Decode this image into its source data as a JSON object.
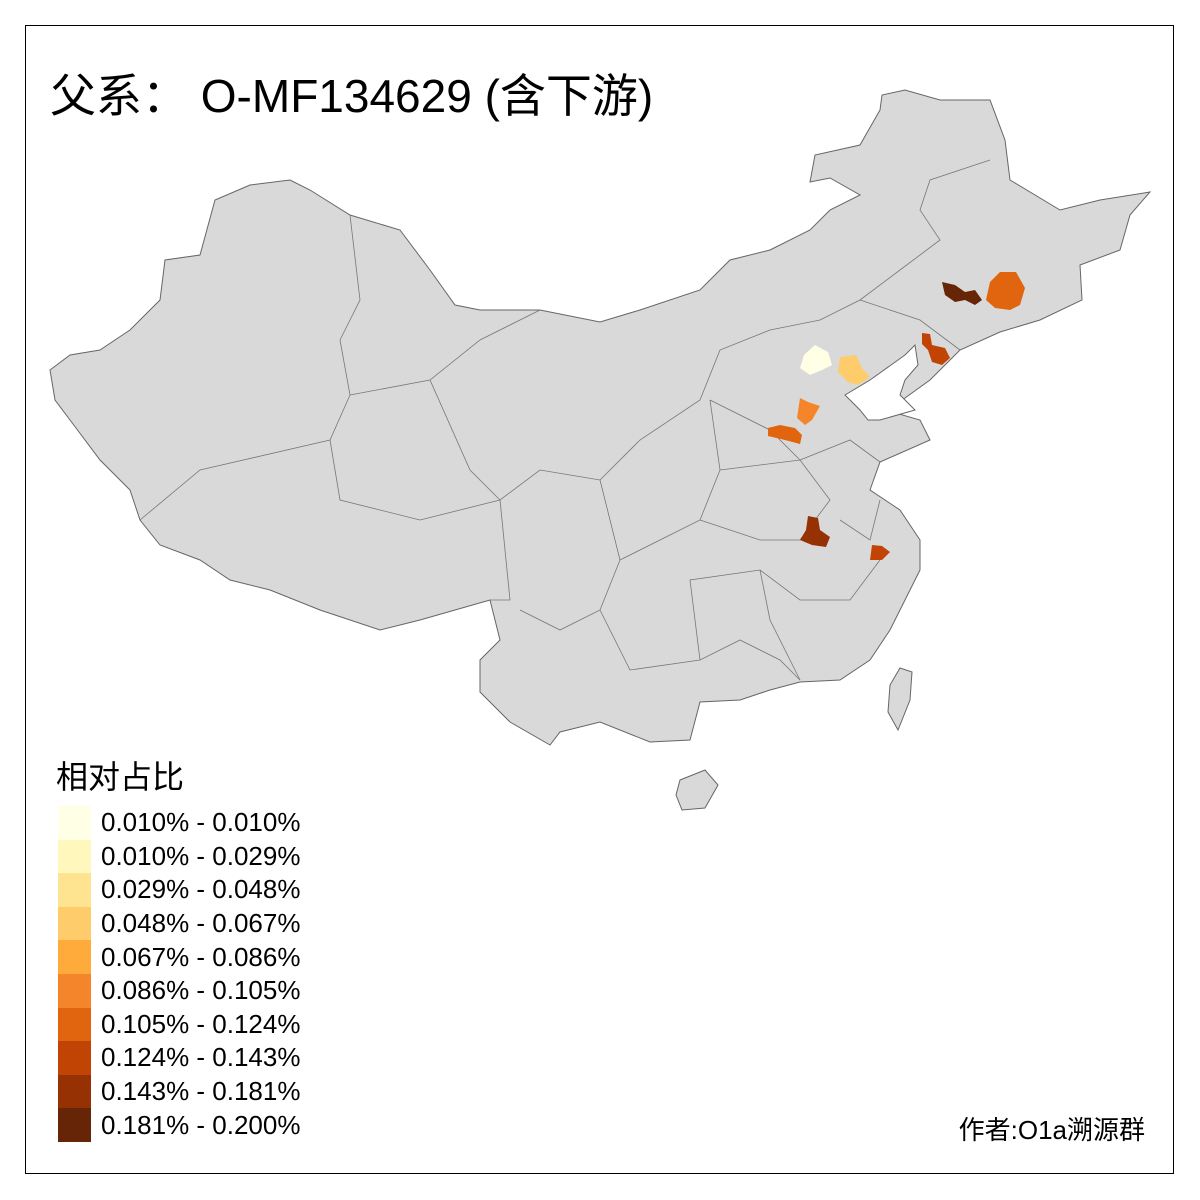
{
  "title": "父系： O-MF134629 (含下游)",
  "legend": {
    "title": "相对占比",
    "items": [
      {
        "label": "0.010% - 0.010%",
        "color": "#FFFFE5"
      },
      {
        "label": "0.010% - 0.029%",
        "color": "#FFF7BC"
      },
      {
        "label": "0.029% - 0.048%",
        "color": "#FEE391"
      },
      {
        "label": "0.048% - 0.067%",
        "color": "#FECC6A"
      },
      {
        "label": "0.067% - 0.086%",
        "color": "#FEAB3B"
      },
      {
        "label": "0.086% - 0.105%",
        "color": "#F4852A"
      },
      {
        "label": "0.105% - 0.124%",
        "color": "#E1640F"
      },
      {
        "label": "0.124% - 0.143%",
        "color": "#C24405"
      },
      {
        "label": "0.143% - 0.181%",
        "color": "#963103"
      },
      {
        "label": "0.181% - 0.200%",
        "color": "#662506"
      }
    ]
  },
  "map": {
    "base_color": "#D9D9D9",
    "border_color": "#666666"
  },
  "author": "作者:O1a溯源群"
}
